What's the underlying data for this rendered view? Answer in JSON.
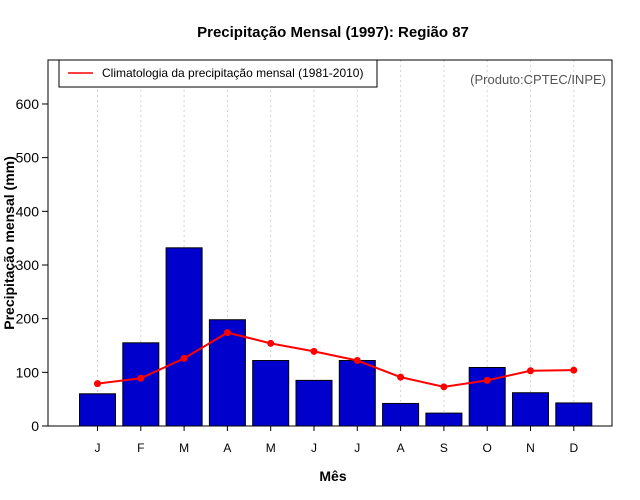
{
  "chart_data": {
    "type": "bar",
    "title": "Precipitação Mensal (1997): Região 87",
    "xlabel": "Mês",
    "ylabel": "Precipitação mensal (mm)",
    "categories": [
      "J",
      "F",
      "M",
      "A",
      "M",
      "J",
      "J",
      "A",
      "S",
      "O",
      "N",
      "D"
    ],
    "ylim": [
      0,
      660
    ],
    "yticks": [
      0,
      100,
      200,
      300,
      400,
      500,
      600
    ],
    "grid": "vertical dotted",
    "legend_position": "top-left",
    "series": [
      {
        "name": "Precipitação mensal (1997)",
        "type": "bar",
        "color": "#0000CD",
        "values": [
          60,
          155,
          332,
          198,
          122,
          85,
          122,
          42,
          24,
          109,
          62,
          43
        ]
      },
      {
        "name": "Climatologia da precipitação mensal (1981-2010)",
        "type": "line",
        "color": "#FF0000",
        "values": [
          79,
          89,
          126,
          174,
          154,
          139,
          122,
          91,
          73,
          85,
          103,
          104
        ]
      }
    ],
    "credit": "(Produto:CPTEC/INPE)"
  }
}
